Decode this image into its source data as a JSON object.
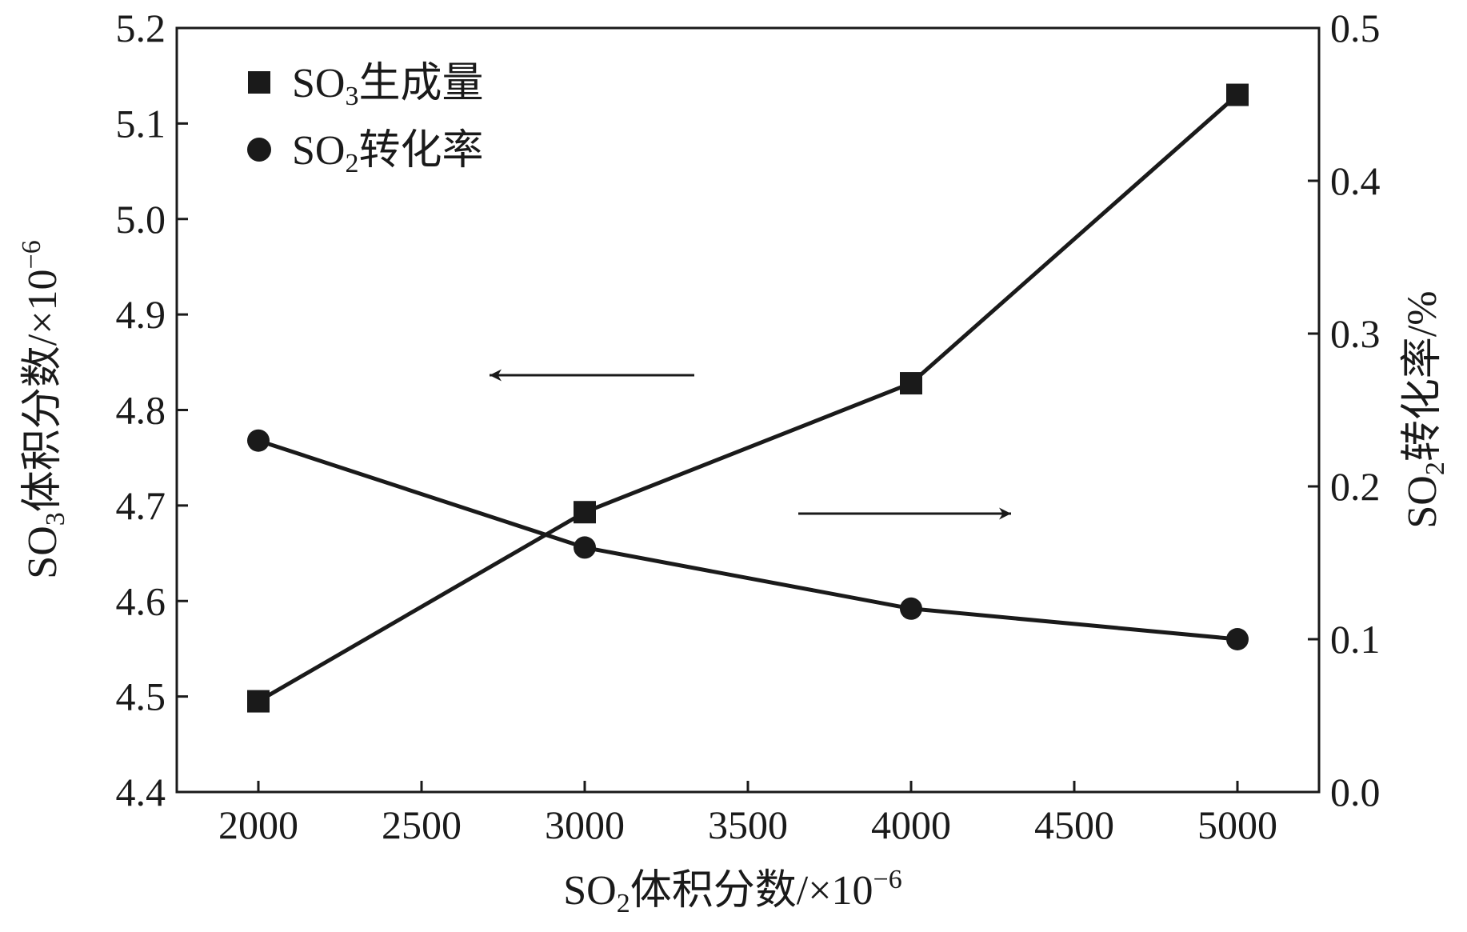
{
  "chart_data": {
    "type": "line",
    "x_label": {
      "prefix": "SO",
      "sub": "2",
      "text": "体积分数/×10",
      "sup": "−6"
    },
    "y_left_label": {
      "prefix": "SO",
      "sub": "3",
      "text": "体积分数/×10",
      "sup": "−6"
    },
    "y_right_label": {
      "prefix": "SO",
      "sub": "2",
      "text": "转化率/%"
    },
    "x": [
      2000,
      3000,
      4000,
      5000
    ],
    "xlim": [
      1750,
      5250
    ],
    "x_ticks": [
      2000,
      2500,
      3000,
      3500,
      4000,
      4500,
      5000
    ],
    "x_tick_labels": [
      "2000",
      "2500",
      "3000",
      "3500",
      "4000",
      "4500",
      "5000"
    ],
    "y_left_lim": [
      4.4,
      5.2
    ],
    "y_left_ticks": [
      4.4,
      4.5,
      4.6,
      4.7,
      4.8,
      4.9,
      5.0,
      5.1,
      5.2
    ],
    "y_left_tick_labels": [
      "4.4",
      "4.5",
      "4.6",
      "4.7",
      "4.8",
      "4.9",
      "5.0",
      "5.1",
      "5.2"
    ],
    "y_right_lim": [
      0.0,
      0.5
    ],
    "y_right_ticks": [
      0.0,
      0.1,
      0.2,
      0.3,
      0.4,
      0.5
    ],
    "y_right_tick_labels": [
      "0.0",
      "0.1",
      "0.2",
      "0.3",
      "0.4",
      "0.5"
    ],
    "series": [
      {
        "name_prefix": "SO",
        "name_sub": "3",
        "name_text": "生成量",
        "axis": "left",
        "marker": "square",
        "color": "#1a1a1a",
        "values": [
          4.495,
          4.693,
          4.828,
          5.13
        ]
      },
      {
        "name_prefix": "SO",
        "name_sub": "2",
        "name_text": "转化率",
        "axis": "right",
        "marker": "circle",
        "color": "#1a1a1a",
        "values": [
          0.23,
          0.16,
          0.12,
          0.1
        ]
      }
    ],
    "annotations": [
      {
        "type": "arrow",
        "direction": "left",
        "points_to_axis": "left"
      },
      {
        "type": "arrow",
        "direction": "right",
        "points_to_axis": "right"
      }
    ],
    "legend_position": "top-left",
    "grid": false
  }
}
